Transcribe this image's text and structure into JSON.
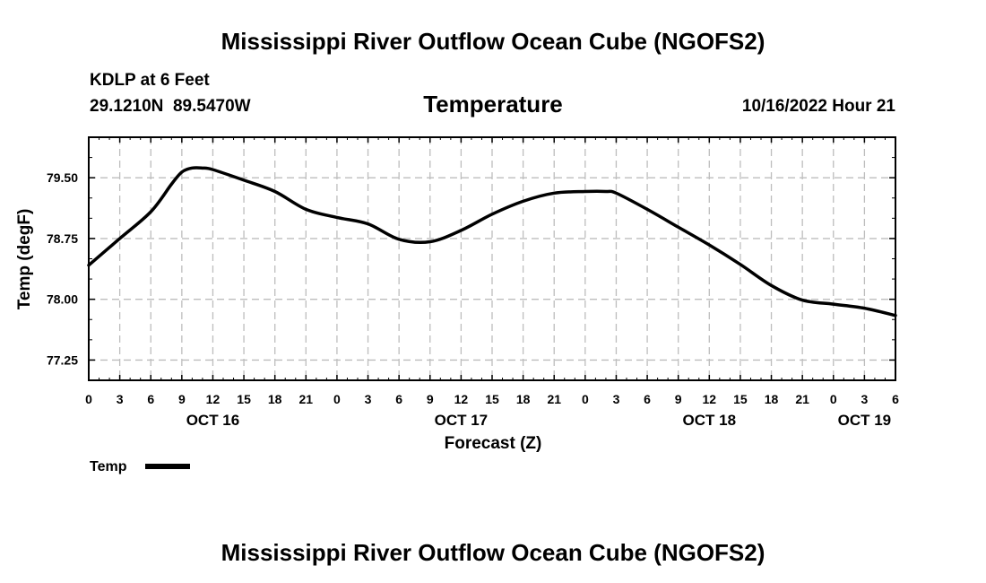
{
  "page_title": "Mississippi River Outflow Ocean Cube (NGOFS2)",
  "footer_title": "Mississippi River Outflow Ocean Cube (NGOFS2)",
  "station": {
    "name": "KDLP at 6 Feet",
    "coords": "29.1210N  89.5470W"
  },
  "valid_time": "10/16/2022 Hour 21",
  "chart_data": {
    "type": "line",
    "title": "Temperature",
    "xlabel": "Forecast (Z)",
    "ylabel": "Temp (degF)",
    "xlim": [
      0,
      78
    ],
    "ylim": [
      77.0,
      80.0
    ],
    "yticks": [
      77.25,
      78.0,
      78.75,
      79.5
    ],
    "ytick_labels": [
      "77.25",
      "78.00",
      "78.75",
      "79.50"
    ],
    "xticks": [
      0,
      3,
      6,
      9,
      12,
      15,
      18,
      21,
      24,
      27,
      30,
      33,
      36,
      39,
      42,
      45,
      48,
      51,
      54,
      57,
      60,
      63,
      66,
      69,
      72,
      75,
      78
    ],
    "xtick_labels": [
      "0",
      "3",
      "6",
      "9",
      "12",
      "15",
      "18",
      "21",
      "0",
      "3",
      "6",
      "9",
      "12",
      "15",
      "18",
      "21",
      "0",
      "3",
      "6",
      "9",
      "12",
      "15",
      "18",
      "21",
      "0",
      "3",
      "6"
    ],
    "day_labels": [
      {
        "label": "OCT 16",
        "x": 12
      },
      {
        "label": "OCT 17",
        "x": 36
      },
      {
        "label": "OCT 18",
        "x": 60
      },
      {
        "label": "OCT 19",
        "x": 75
      }
    ],
    "grid": true,
    "legend": {
      "position": "bottom-left",
      "entries": [
        "Temp"
      ]
    },
    "series": [
      {
        "name": "Temp",
        "color": "#000000",
        "x": [
          0,
          3,
          6,
          8,
          9,
          10,
          11,
          12,
          15,
          18,
          21,
          24,
          27,
          30,
          33,
          36,
          39,
          42,
          45,
          48,
          50,
          51,
          54,
          57,
          60,
          63,
          66,
          69,
          72,
          75,
          78
        ],
        "y": [
          78.42,
          78.75,
          79.08,
          79.42,
          79.57,
          79.62,
          79.62,
          79.6,
          79.47,
          79.33,
          79.11,
          79.01,
          78.93,
          78.74,
          78.71,
          78.85,
          79.05,
          79.21,
          79.31,
          79.33,
          79.33,
          79.31,
          79.11,
          78.89,
          78.67,
          78.43,
          78.17,
          77.99,
          77.94,
          77.89,
          77.8
        ]
      }
    ]
  }
}
